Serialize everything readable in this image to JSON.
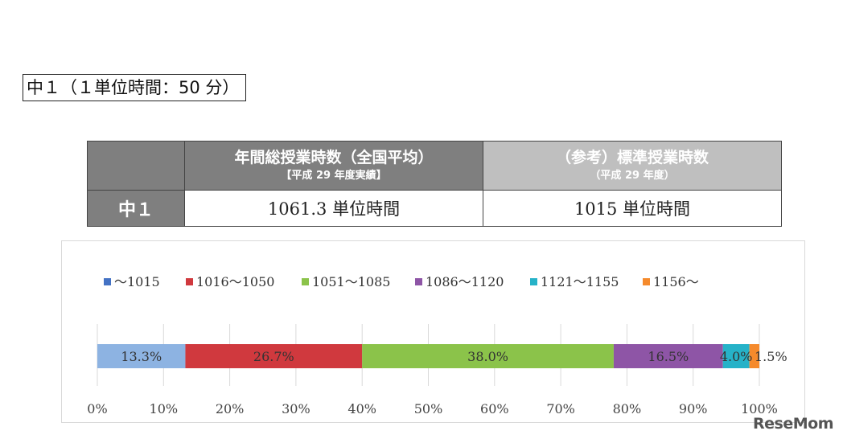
{
  "section_title": "中１（１単位時間：50 分）",
  "summary_table": {
    "col1_main": "年間総授業時数（全国平均）",
    "col1_sub": "【平成 29 年度実績】",
    "col2_main": "（参考）標準授業時数",
    "col2_sub": "（平成 29 年度）",
    "row_label": "中１",
    "col1_value": "1061.3 単位時間",
    "col2_value": "1015 単位時間"
  },
  "chart_data": {
    "type": "bar",
    "orientation": "horizontal",
    "stacked": true,
    "percent": true,
    "categories": [
      "中１"
    ],
    "series": [
      {
        "name": "～1015",
        "values": [
          13.3
        ],
        "label": "13.3%",
        "color": "#8db3e2",
        "legend_color": "#4472c4"
      },
      {
        "name": "1016～1050",
        "values": [
          26.7
        ],
        "label": "26.7%",
        "color": "#d0393e",
        "legend_color": "#d0393e"
      },
      {
        "name": "1051～1085",
        "values": [
          38.0
        ],
        "label": "38.0%",
        "color": "#8bc34a",
        "legend_color": "#8bc34a"
      },
      {
        "name": "1086～1120",
        "values": [
          16.5
        ],
        "label": "16.5%",
        "color": "#8e55a6",
        "legend_color": "#8e55a6"
      },
      {
        "name": "1121～1155",
        "values": [
          4.0
        ],
        "label": "4.0%",
        "color": "#26b2c8",
        "legend_color": "#26b2c8"
      },
      {
        "name": "1156～",
        "values": [
          1.5
        ],
        "label": "1.5%",
        "color": "#f58a2c",
        "legend_color": "#f58a2c"
      }
    ],
    "xlim": [
      0,
      100
    ],
    "xticks": [
      "0%",
      "10%",
      "20%",
      "30%",
      "40%",
      "50%",
      "60%",
      "70%",
      "80%",
      "90%",
      "100%"
    ],
    "grid": true,
    "legend_position": "top"
  },
  "watermark": "ReseMom"
}
